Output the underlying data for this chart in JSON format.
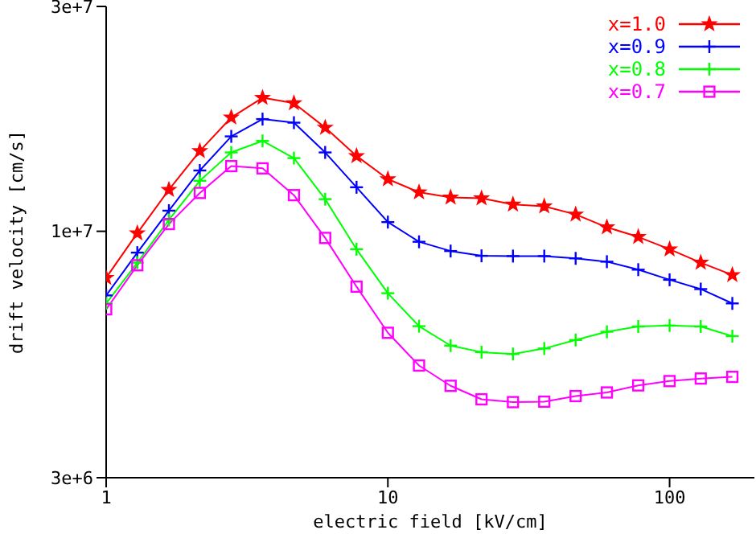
{
  "chart_data": {
    "type": "line",
    "xlabel": "electric field [kV/cm]",
    "ylabel": "drift velocity [cm/s]",
    "log": "xy",
    "grid": false,
    "legend": "top right",
    "line_style": "solid",
    "x": [
      1,
      1.29,
      1.67,
      2.15,
      2.78,
      3.59,
      4.64,
      5.99,
      7.74,
      10,
      12.9,
      16.7,
      21.5,
      27.8,
      35.9,
      46.4,
      59.9,
      77.4,
      100,
      129,
      167
    ],
    "xlim": [
      1,
      200
    ],
    "xticks": [
      1,
      10,
      100
    ],
    "ylim": [
      3000000,
      30000000
    ],
    "yticks": [
      {
        "value": 3000000,
        "label": "3e+6"
      },
      {
        "value": 10000000,
        "label": "1e+7"
      },
      {
        "value": 30000000,
        "label": "3e+7"
      }
    ],
    "series": [
      {
        "name": "x=1.0",
        "color": "#ff0000",
        "marker": "star",
        "values": [
          7970000,
          9910000,
          12250000,
          14800000,
          17440000,
          19200000,
          18700000,
          16600000,
          14450000,
          12900000,
          12100000,
          11800000,
          11750000,
          11400000,
          11300000,
          10860000,
          10200000,
          9730000,
          9160000,
          8580000,
          8080000
        ]
      },
      {
        "name": "x=0.9",
        "color": "#0000ff",
        "marker": "cross",
        "values": [
          7310000,
          9010000,
          11060000,
          13460000,
          15900000,
          17300000,
          17000000,
          14700000,
          12400000,
          10460000,
          9500000,
          9080000,
          8870000,
          8860000,
          8860000,
          8760000,
          8620000,
          8290000,
          7890000,
          7540000,
          7030000
        ]
      },
      {
        "name": "x=0.8",
        "color": "#00ff00",
        "marker": "cross",
        "values": [
          7030000,
          8580000,
          10570000,
          12800000,
          14700000,
          15550000,
          14300000,
          11700000,
          9160000,
          7390000,
          6290000,
          5720000,
          5540000,
          5490000,
          5640000,
          5880000,
          6120000,
          6280000,
          6310000,
          6280000,
          5990000
        ]
      },
      {
        "name": "x=0.7",
        "color": "#ff00ff",
        "marker": "square",
        "values": [
          6830000,
          8470000,
          10360000,
          12060000,
          13750000,
          13600000,
          11930000,
          9680000,
          7630000,
          6090000,
          5190000,
          4700000,
          4400000,
          4340000,
          4350000,
          4470000,
          4550000,
          4710000,
          4810000,
          4870000,
          4910000
        ]
      }
    ]
  }
}
